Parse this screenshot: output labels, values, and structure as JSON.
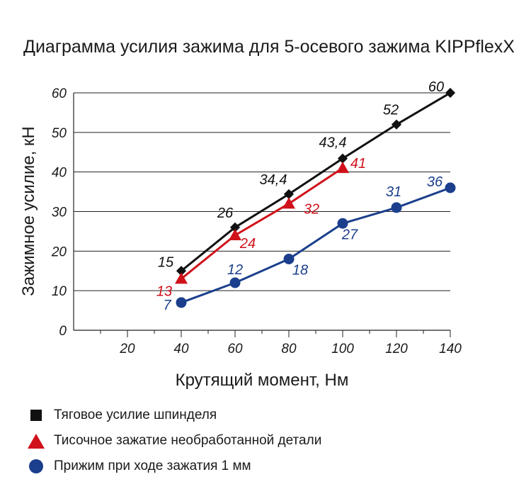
{
  "chart_data": {
    "type": "line",
    "title": "Диаграмма усилия зажима для 5-осевого зажима KIPPflexX",
    "xlabel": "Крутящий момент, Нм",
    "ylabel": "Зажимное усилие, кН",
    "xlim": [
      0,
      140
    ],
    "ylim": [
      0,
      60
    ],
    "x_ticks": [
      "20",
      "40",
      "60",
      "80",
      "100",
      "120",
      "140"
    ],
    "y_ticks": [
      "0",
      "10",
      "20",
      "30",
      "40",
      "50",
      "60"
    ],
    "grid": "horizontal",
    "legend_position": "bottom",
    "series": [
      {
        "name": "Тяговое усилие шпинделя",
        "marker": "square",
        "color": "#111111",
        "x": [
          40,
          60,
          80,
          100,
          120,
          140
        ],
        "values": [
          15,
          26,
          34.4,
          43.4,
          52,
          60
        ],
        "labels": [
          "15",
          "26",
          "34,4",
          "43,4",
          "52",
          "60"
        ]
      },
      {
        "name": "Тисочное зажатие необработанной детали",
        "marker": "triangle",
        "color": "#d0121b",
        "x": [
          40,
          60,
          80,
          100
        ],
        "values": [
          13,
          24,
          32,
          41
        ],
        "labels": [
          "13",
          "24",
          "32",
          "41"
        ]
      },
      {
        "name": "Прижим при ходе зажатия 1 мм",
        "marker": "circle",
        "color": "#1b3f8c",
        "x": [
          40,
          60,
          80,
          100,
          120,
          140
        ],
        "values": [
          7,
          12,
          18,
          27,
          31,
          36
        ],
        "labels": [
          "7",
          "12",
          "18",
          "27",
          "31",
          "36"
        ]
      }
    ]
  }
}
